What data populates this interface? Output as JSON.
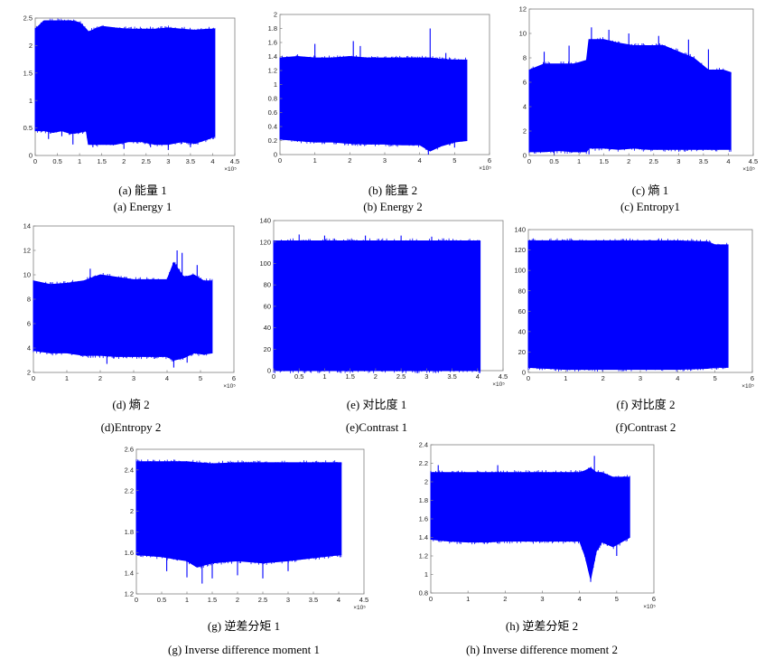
{
  "colors": {
    "series": "#0000ff",
    "axis": "#7f7f7f",
    "background": "#ffffff"
  },
  "chart_data": [
    {
      "id": "a",
      "type": "area",
      "caption_cn": "(a) 能量 1",
      "caption_en": "(a) Energy 1",
      "xlim": [
        0,
        4.5
      ],
      "ylim": [
        0,
        2.5
      ],
      "x_exponent": "×10⁵",
      "xticks": [
        "0",
        "0.5",
        "1",
        "1.5",
        "2",
        "2.5",
        "3",
        "3.5",
        "4",
        "4.5"
      ],
      "yticks": [
        "0",
        "0.5",
        "1",
        "1.5",
        "2",
        "2.5"
      ],
      "xticks_v": [
        0,
        0.5,
        1,
        1.5,
        2,
        2.5,
        3,
        3.5,
        4,
        4.5
      ],
      "yticks_v": [
        0,
        0.5,
        1,
        1.5,
        2,
        2.5
      ],
      "series_x": [
        0,
        0.2,
        0.4,
        0.6,
        0.8,
        1.0,
        1.15,
        1.2,
        1.5,
        1.8,
        2.1,
        2.4,
        2.7,
        3.0,
        3.3,
        3.6,
        3.9,
        4.05
      ],
      "series_upper": [
        2.3,
        2.45,
        2.45,
        2.45,
        2.45,
        2.42,
        2.3,
        2.25,
        2.35,
        2.32,
        2.3,
        2.3,
        2.3,
        2.32,
        2.3,
        2.28,
        2.3,
        2.3
      ],
      "series_lower": [
        0.45,
        0.45,
        0.42,
        0.45,
        0.4,
        0.42,
        0.45,
        0.2,
        0.2,
        0.2,
        0.25,
        0.25,
        0.2,
        0.2,
        0.25,
        0.22,
        0.3,
        0.35
      ],
      "spikes_up": [],
      "spikes_down": [
        [
          0.3,
          0.3
        ],
        [
          0.6,
          0.35
        ],
        [
          0.85,
          0.2
        ],
        [
          1.3,
          0.15
        ],
        [
          2.0,
          0.12
        ],
        [
          2.6,
          0.15
        ],
        [
          3.0,
          0.1
        ],
        [
          3.5,
          0.15
        ]
      ]
    },
    {
      "id": "b",
      "type": "area",
      "caption_cn": "(b) 能量 2",
      "caption_en": "(b) Energy 2",
      "xlim": [
        0,
        6
      ],
      "ylim": [
        0,
        2
      ],
      "x_exponent": "×10⁵",
      "xticks": [
        "0",
        "1",
        "2",
        "3",
        "4",
        "5",
        "6"
      ],
      "yticks": [
        "0",
        "0.2",
        "0.4",
        "0.6",
        "0.8",
        "1",
        "1.2",
        "1.4",
        "1.6",
        "1.8",
        "2"
      ],
      "xticks_v": [
        0,
        1,
        2,
        3,
        4,
        5,
        6
      ],
      "yticks_v": [
        0,
        0.2,
        0.4,
        0.6,
        0.8,
        1,
        1.2,
        1.4,
        1.6,
        1.8,
        2
      ],
      "series_x": [
        0,
        0.5,
        1,
        1.5,
        2,
        2.5,
        3,
        3.5,
        4,
        4.3,
        4.6,
        5.0,
        5.35
      ],
      "series_upper": [
        1.38,
        1.4,
        1.38,
        1.38,
        1.4,
        1.38,
        1.38,
        1.38,
        1.38,
        1.38,
        1.36,
        1.35,
        1.35
      ],
      "series_lower": [
        0.22,
        0.2,
        0.18,
        0.18,
        0.16,
        0.15,
        0.15,
        0.14,
        0.14,
        0.05,
        0.12,
        0.18,
        0.2
      ],
      "spikes_up": [
        [
          1.0,
          1.58
        ],
        [
          2.1,
          1.62
        ],
        [
          2.3,
          1.55
        ],
        [
          4.3,
          1.8
        ],
        [
          4.75,
          1.45
        ]
      ],
      "spikes_down": [
        [
          4.25,
          0.0
        ],
        [
          5.0,
          0.1
        ]
      ]
    },
    {
      "id": "c",
      "type": "area",
      "caption_cn": "(c) 熵 1",
      "caption_en": "(c) Entropy1",
      "xlim": [
        0,
        4.5
      ],
      "ylim": [
        0,
        12
      ],
      "x_exponent": "×10⁵",
      "xticks": [
        "0",
        "0.5",
        "1",
        "1.5",
        "2",
        "2.5",
        "3",
        "3.5",
        "4",
        "4.5"
      ],
      "yticks": [
        "0",
        "2",
        "4",
        "6",
        "8",
        "10",
        "12"
      ],
      "xticks_v": [
        0,
        0.5,
        1,
        1.5,
        2,
        2.5,
        3,
        3.5,
        4,
        4.5
      ],
      "yticks_v": [
        0,
        2,
        4,
        6,
        8,
        10,
        12
      ],
      "series_x": [
        0,
        0.3,
        0.6,
        0.9,
        1.15,
        1.2,
        1.5,
        1.8,
        2.1,
        2.4,
        2.7,
        3.0,
        3.3,
        3.6,
        3.9,
        4.05
      ],
      "series_upper": [
        7.0,
        7.5,
        7.5,
        7.5,
        7.8,
        9.5,
        9.5,
        9.2,
        9.0,
        9.0,
        9.0,
        8.5,
        8.0,
        7.0,
        7.0,
        6.8
      ],
      "series_lower": [
        0.3,
        0.3,
        0.4,
        0.3,
        0.3,
        0.6,
        0.6,
        0.5,
        0.6,
        0.5,
        0.5,
        0.5,
        0.5,
        0.5,
        0.5,
        0.5
      ],
      "spikes_up": [
        [
          0.3,
          8.5
        ],
        [
          0.8,
          9.0
        ],
        [
          1.25,
          10.5
        ],
        [
          1.6,
          10.3
        ],
        [
          2.0,
          10.0
        ],
        [
          2.6,
          9.8
        ],
        [
          3.2,
          9.5
        ],
        [
          3.6,
          8.7
        ]
      ],
      "spikes_down": [
        [
          0.5,
          0.0
        ],
        [
          1.2,
          0.1
        ]
      ]
    },
    {
      "id": "d",
      "type": "area",
      "caption_cn": "(d) 熵 2",
      "caption_en": "(d)Entropy 2",
      "xlim": [
        0,
        6
      ],
      "ylim": [
        2,
        14
      ],
      "x_exponent": "×10⁵",
      "xticks": [
        "0",
        "1",
        "2",
        "3",
        "4",
        "5",
        "6"
      ],
      "yticks": [
        "2",
        "4",
        "6",
        "8",
        "10",
        "12",
        "14"
      ],
      "xticks_v": [
        0,
        1,
        2,
        3,
        4,
        5,
        6
      ],
      "yticks_v": [
        2,
        4,
        6,
        8,
        10,
        12,
        14
      ],
      "series_x": [
        0,
        0.5,
        1,
        1.5,
        2,
        2.5,
        3,
        3.5,
        4,
        4.2,
        4.5,
        4.8,
        5.1,
        5.35
      ],
      "series_upper": [
        9.5,
        9.2,
        9.3,
        9.5,
        10.0,
        9.8,
        9.6,
        9.6,
        9.6,
        11.0,
        9.8,
        10.0,
        9.5,
        9.5
      ],
      "series_lower": [
        3.8,
        3.6,
        3.6,
        3.4,
        3.4,
        3.3,
        3.3,
        3.3,
        3.3,
        3.0,
        3.2,
        3.6,
        3.5,
        3.6
      ],
      "spikes_up": [
        [
          1.7,
          10.5
        ],
        [
          4.3,
          12.0
        ],
        [
          4.45,
          11.8
        ],
        [
          4.9,
          10.8
        ]
      ],
      "spikes_down": [
        [
          2.2,
          2.7
        ],
        [
          4.2,
          2.4
        ],
        [
          4.6,
          2.8
        ]
      ]
    },
    {
      "id": "e",
      "type": "area",
      "caption_cn": "(e) 对比度 1",
      "caption_en": "(e)Contrast 1",
      "xlim": [
        0,
        4.5
      ],
      "ylim": [
        0,
        140
      ],
      "x_exponent": "×10⁵",
      "xticks": [
        "0",
        "0.5",
        "1",
        "1.5",
        "2",
        "2.5",
        "3",
        "3.5",
        "4",
        "4.5"
      ],
      "yticks": [
        "0",
        "20",
        "40",
        "60",
        "80",
        "100",
        "120",
        "140"
      ],
      "xticks_v": [
        0,
        0.5,
        1,
        1.5,
        2,
        2.5,
        3,
        3.5,
        4,
        4.5
      ],
      "yticks_v": [
        0,
        20,
        40,
        60,
        80,
        100,
        120,
        140
      ],
      "series_x": [
        0,
        1,
        2,
        3,
        4.05
      ],
      "series_upper": [
        121,
        121,
        121,
        121,
        121
      ],
      "series_lower": [
        0,
        0,
        0,
        0,
        0
      ],
      "spikes_up": [
        [
          0.5,
          127
        ],
        [
          1.0,
          126
        ],
        [
          1.8,
          126
        ],
        [
          2.5,
          126
        ],
        [
          3.1,
          125
        ]
      ],
      "spikes_down": [
        [
          0.4,
          100
        ],
        [
          0.9,
          95
        ],
        [
          1.5,
          98
        ],
        [
          2.2,
          100
        ],
        [
          2.8,
          98
        ],
        [
          3.4,
          100
        ],
        [
          3.8,
          105
        ]
      ]
    },
    {
      "id": "f",
      "type": "area",
      "caption_cn": "(f) 对比度 2",
      "caption_en": "(f)Contrast 2",
      "xlim": [
        0,
        6
      ],
      "ylim": [
        0,
        140
      ],
      "x_exponent": "×10⁵",
      "xticks": [
        "0",
        "1",
        "2",
        "3",
        "4",
        "5",
        "6"
      ],
      "yticks": [
        "0",
        "20",
        "40",
        "60",
        "80",
        "100",
        "120",
        "140"
      ],
      "xticks_v": [
        0,
        1,
        2,
        3,
        4,
        5,
        6
      ],
      "yticks_v": [
        0,
        20,
        40,
        60,
        80,
        100,
        120,
        140
      ],
      "series_x": [
        0,
        1,
        2,
        3,
        4,
        4.8,
        5.0,
        5.35
      ],
      "series_upper": [
        129,
        129,
        129,
        129,
        129,
        128,
        125,
        125
      ],
      "series_lower": [
        5,
        3,
        3,
        3,
        3,
        4,
        5,
        5
      ],
      "spikes_up": [],
      "spikes_down": []
    },
    {
      "id": "g",
      "type": "area",
      "caption_cn": "(g) 逆差分矩 1",
      "caption_en": "(g) Inverse difference moment 1",
      "xlim": [
        0,
        4.5
      ],
      "ylim": [
        1.2,
        2.6
      ],
      "x_exponent": "×10⁵",
      "xticks": [
        "0",
        "0.5",
        "1",
        "1.5",
        "2",
        "2.5",
        "3",
        "3.5",
        "4",
        "4.5"
      ],
      "yticks": [
        "1.2",
        "1.4",
        "1.6",
        "1.8",
        "2",
        "2.2",
        "2.4",
        "2.6"
      ],
      "xticks_v": [
        0,
        0.5,
        1,
        1.5,
        2,
        2.5,
        3,
        3.5,
        4,
        4.5
      ],
      "yticks_v": [
        1.2,
        1.4,
        1.6,
        1.8,
        2,
        2.2,
        2.4,
        2.6
      ],
      "series_x": [
        0,
        0.5,
        1.0,
        1.2,
        1.5,
        2.0,
        2.5,
        3.0,
        3.5,
        4.05
      ],
      "series_upper": [
        2.48,
        2.48,
        2.48,
        2.47,
        2.46,
        2.47,
        2.47,
        2.47,
        2.47,
        2.47
      ],
      "series_lower": [
        1.58,
        1.56,
        1.52,
        1.46,
        1.5,
        1.52,
        1.5,
        1.52,
        1.55,
        1.58
      ],
      "spikes_up": [],
      "spikes_down": [
        [
          0.6,
          1.42
        ],
        [
          1.0,
          1.36
        ],
        [
          1.3,
          1.3
        ],
        [
          1.5,
          1.35
        ],
        [
          2.0,
          1.38
        ],
        [
          2.5,
          1.35
        ],
        [
          3.0,
          1.42
        ]
      ]
    },
    {
      "id": "h",
      "type": "area",
      "caption_cn": "(h) 逆差分矩 2",
      "caption_en": "(h) Inverse difference moment 2",
      "xlim": [
        0,
        6
      ],
      "ylim": [
        0.8,
        2.4
      ],
      "x_exponent": "×10⁵",
      "xticks": [
        "0",
        "1",
        "2",
        "3",
        "4",
        "5",
        "6"
      ],
      "yticks": [
        "0.8",
        "1",
        "1.2",
        "1.4",
        "1.6",
        "1.8",
        "2",
        "2.2",
        "2.4"
      ],
      "xticks_v": [
        0,
        1,
        2,
        3,
        4,
        5,
        6
      ],
      "yticks_v": [
        0.8,
        1,
        1.2,
        1.4,
        1.6,
        1.8,
        2,
        2.2,
        2.4
      ],
      "series_x": [
        0,
        0.5,
        1,
        1.5,
        2,
        2.5,
        3,
        3.5,
        4,
        4.15,
        4.3,
        4.45,
        4.6,
        4.9,
        5.35
      ],
      "series_upper": [
        2.1,
        2.1,
        2.1,
        2.1,
        2.1,
        2.1,
        2.1,
        2.1,
        2.1,
        2.12,
        2.15,
        2.1,
        2.1,
        2.05,
        2.05
      ],
      "series_lower": [
        1.38,
        1.36,
        1.35,
        1.35,
        1.36,
        1.36,
        1.36,
        1.36,
        1.36,
        1.2,
        0.95,
        1.25,
        1.35,
        1.3,
        1.4
      ],
      "spikes_up": [
        [
          0.2,
          2.18
        ],
        [
          1.8,
          2.18
        ],
        [
          4.4,
          2.28
        ]
      ],
      "spikes_down": [
        [
          4.3,
          0.92
        ],
        [
          5.0,
          1.2
        ]
      ]
    }
  ]
}
